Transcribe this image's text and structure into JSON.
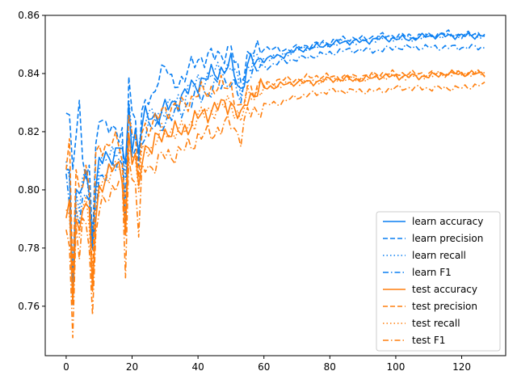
{
  "chart_data": {
    "type": "line",
    "title": "",
    "xlabel": "",
    "ylabel": "",
    "xlim": [
      -6.35,
      133.35
    ],
    "ylim": [
      0.743,
      0.86
    ],
    "xticks": [
      0,
      20,
      40,
      60,
      80,
      100,
      120
    ],
    "yticks": [
      0.76,
      0.78,
      0.8,
      0.82,
      0.84,
      0.86
    ],
    "xtick_labels": [
      "0",
      "20",
      "40",
      "60",
      "80",
      "100",
      "120"
    ],
    "ytick_labels": [
      "0.76",
      "0.78",
      "0.80",
      "0.82",
      "0.84",
      "0.86"
    ],
    "grid": false,
    "legend_position": "lower-right",
    "anchor_x": [
      0,
      1,
      2,
      3,
      4,
      5,
      6,
      7,
      8,
      9,
      10,
      12,
      14,
      16,
      17,
      18,
      19,
      20,
      21,
      22,
      23,
      24,
      26,
      28,
      30,
      32,
      35,
      40,
      45,
      50,
      53,
      55,
      60,
      65,
      70,
      75,
      80,
      85,
      90,
      95,
      100,
      105,
      110,
      115,
      120,
      125,
      127
    ],
    "series": [
      {
        "name": "learn accuracy",
        "color": "#0a7ff2",
        "dash": "solid",
        "values": [
          0.807,
          0.806,
          0.769,
          0.8,
          0.796,
          0.802,
          0.805,
          0.798,
          0.784,
          0.8,
          0.81,
          0.81,
          0.812,
          0.815,
          0.815,
          0.805,
          0.83,
          0.815,
          0.82,
          0.815,
          0.822,
          0.825,
          0.825,
          0.826,
          0.828,
          0.829,
          0.832,
          0.837,
          0.84,
          0.843,
          0.834,
          0.843,
          0.845,
          0.846,
          0.848,
          0.849,
          0.85,
          0.851,
          0.851,
          0.852,
          0.852,
          0.852,
          0.853,
          0.853,
          0.853,
          0.853,
          0.853
        ]
      },
      {
        "name": "learn precision",
        "color": "#0a7ff2",
        "dash": "6,3",
        "values": [
          0.823,
          0.827,
          0.81,
          0.817,
          0.832,
          0.81,
          0.8,
          0.81,
          0.784,
          0.815,
          0.826,
          0.82,
          0.822,
          0.82,
          0.82,
          0.782,
          0.84,
          0.825,
          0.825,
          0.812,
          0.826,
          0.83,
          0.83,
          0.84,
          0.843,
          0.836,
          0.838,
          0.845,
          0.846,
          0.848,
          0.838,
          0.846,
          0.849,
          0.848,
          0.849,
          0.85,
          0.851,
          0.852,
          0.852,
          0.853,
          0.853,
          0.853,
          0.853,
          0.854,
          0.853,
          0.854,
          0.853
        ]
      },
      {
        "name": "learn recall",
        "color": "#0a7ff2",
        "dash": "1.5,3",
        "values": [
          0.807,
          0.806,
          0.769,
          0.8,
          0.796,
          0.802,
          0.805,
          0.798,
          0.784,
          0.8,
          0.81,
          0.81,
          0.812,
          0.815,
          0.815,
          0.805,
          0.83,
          0.815,
          0.82,
          0.815,
          0.822,
          0.825,
          0.825,
          0.826,
          0.828,
          0.829,
          0.832,
          0.837,
          0.84,
          0.843,
          0.834,
          0.843,
          0.845,
          0.846,
          0.848,
          0.849,
          0.85,
          0.851,
          0.851,
          0.852,
          0.852,
          0.852,
          0.853,
          0.853,
          0.853,
          0.853,
          0.853
        ]
      },
      {
        "name": "learn F1",
        "color": "#0a7ff2",
        "dash": "7,3,1.5,3",
        "values": [
          0.806,
          0.794,
          0.758,
          0.796,
          0.79,
          0.796,
          0.8,
          0.794,
          0.777,
          0.795,
          0.805,
          0.805,
          0.808,
          0.81,
          0.81,
          0.8,
          0.826,
          0.81,
          0.815,
          0.81,
          0.818,
          0.82,
          0.821,
          0.822,
          0.824,
          0.825,
          0.828,
          0.832,
          0.835,
          0.838,
          0.83,
          0.84,
          0.842,
          0.844,
          0.845,
          0.846,
          0.847,
          0.848,
          0.848,
          0.848,
          0.849,
          0.849,
          0.849,
          0.849,
          0.849,
          0.849,
          0.849
        ]
      },
      {
        "name": "test accuracy",
        "color": "#ff7f0e",
        "dash": "solid",
        "values": [
          0.792,
          0.793,
          0.76,
          0.792,
          0.785,
          0.795,
          0.797,
          0.79,
          0.765,
          0.79,
          0.8,
          0.805,
          0.807,
          0.808,
          0.806,
          0.785,
          0.818,
          0.81,
          0.81,
          0.8,
          0.812,
          0.815,
          0.814,
          0.818,
          0.82,
          0.82,
          0.82,
          0.825,
          0.828,
          0.83,
          0.824,
          0.832,
          0.835,
          0.836,
          0.837,
          0.837,
          0.838,
          0.838,
          0.838,
          0.839,
          0.839,
          0.839,
          0.839,
          0.84,
          0.84,
          0.84,
          0.84
        ]
      },
      {
        "name": "test precision",
        "color": "#ff7f0e",
        "dash": "6,3",
        "values": [
          0.807,
          0.815,
          0.772,
          0.805,
          0.8,
          0.805,
          0.808,
          0.8,
          0.77,
          0.81,
          0.815,
          0.815,
          0.817,
          0.815,
          0.812,
          0.79,
          0.828,
          0.82,
          0.815,
          0.805,
          0.82,
          0.822,
          0.822,
          0.825,
          0.828,
          0.828,
          0.829,
          0.833,
          0.835,
          0.836,
          0.826,
          0.835,
          0.836,
          0.838,
          0.838,
          0.839,
          0.839,
          0.839,
          0.839,
          0.84,
          0.84,
          0.84,
          0.84,
          0.84,
          0.84,
          0.84,
          0.84
        ]
      },
      {
        "name": "test recall",
        "color": "#ff7f0e",
        "dash": "1.5,3",
        "values": [
          0.792,
          0.793,
          0.76,
          0.792,
          0.785,
          0.795,
          0.797,
          0.79,
          0.765,
          0.79,
          0.8,
          0.805,
          0.807,
          0.808,
          0.806,
          0.785,
          0.818,
          0.81,
          0.81,
          0.8,
          0.812,
          0.815,
          0.814,
          0.818,
          0.82,
          0.82,
          0.82,
          0.825,
          0.828,
          0.83,
          0.824,
          0.832,
          0.835,
          0.836,
          0.837,
          0.837,
          0.838,
          0.838,
          0.838,
          0.839,
          0.839,
          0.839,
          0.839,
          0.84,
          0.84,
          0.84,
          0.84
        ]
      },
      {
        "name": "test F1",
        "color": "#ff7f0e",
        "dash": "7,3,1.5,3",
        "values": [
          0.787,
          0.784,
          0.747,
          0.786,
          0.777,
          0.788,
          0.79,
          0.783,
          0.755,
          0.785,
          0.792,
          0.798,
          0.8,
          0.802,
          0.8,
          0.772,
          0.812,
          0.803,
          0.805,
          0.782,
          0.806,
          0.808,
          0.808,
          0.81,
          0.812,
          0.812,
          0.813,
          0.818,
          0.82,
          0.823,
          0.818,
          0.826,
          0.829,
          0.83,
          0.832,
          0.833,
          0.834,
          0.834,
          0.834,
          0.834,
          0.835,
          0.835,
          0.835,
          0.835,
          0.835,
          0.836,
          0.836
        ]
      }
    ]
  }
}
